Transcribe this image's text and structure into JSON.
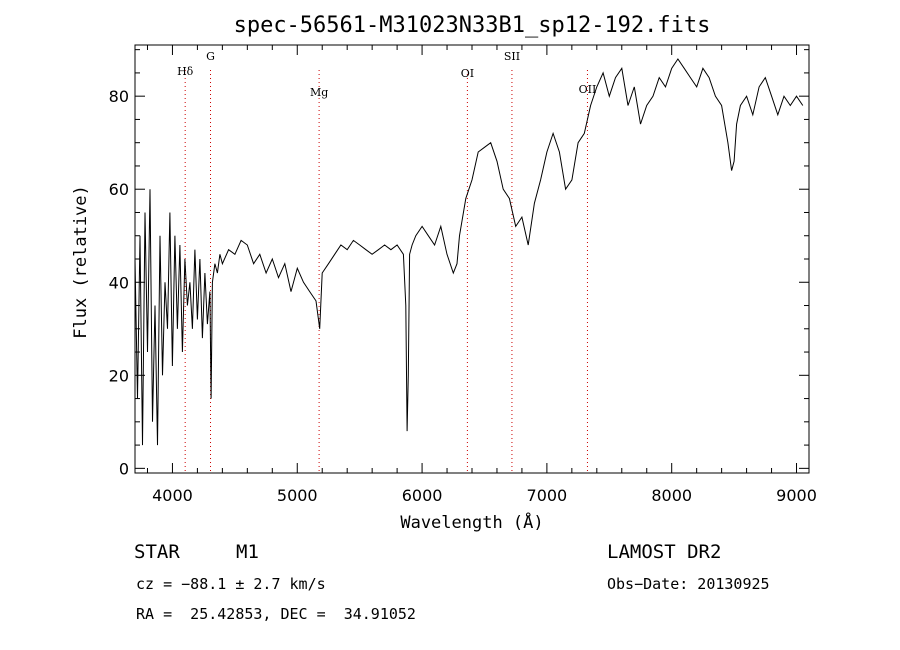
{
  "chart_data": {
    "type": "line",
    "title": "spec-56561-M31023N33B1_sp12-192.fits",
    "xlabel": "Wavelength (Å)",
    "ylabel": "Flux (relative)",
    "xlim": [
      3700,
      9100
    ],
    "ylim": [
      -1,
      91
    ],
    "x_ticks": [
      4000,
      5000,
      6000,
      7000,
      8000,
      9000
    ],
    "y_ticks": [
      0,
      20,
      40,
      60,
      80
    ],
    "line_color": "#000000",
    "marker_color": "#cc0000",
    "lines": [
      {
        "label": "Hδ",
        "x": 4102
      },
      {
        "label": "G",
        "x": 4305
      },
      {
        "label": "Mg",
        "x": 5175
      },
      {
        "label": "OI",
        "x": 6363
      },
      {
        "label": "SII",
        "x": 6720
      },
      {
        "label": "OII",
        "x": 7325
      }
    ],
    "series": [
      {
        "x": [
          3700,
          3720,
          3740,
          3760,
          3780,
          3800,
          3820,
          3840,
          3860,
          3880,
          3900,
          3920,
          3940,
          3960,
          3980,
          4000,
          4020,
          4040,
          4060,
          4080,
          4100,
          4120,
          4140,
          4160,
          4180,
          4200,
          4220,
          4240,
          4260,
          4280,
          4300,
          4310,
          4320,
          4340,
          4360,
          4380,
          4400,
          4450,
          4500,
          4550,
          4600,
          4650,
          4700,
          4750,
          4800,
          4850,
          4900,
          4950,
          5000,
          5050,
          5100,
          5150,
          5180,
          5200,
          5250,
          5300,
          5350,
          5400,
          5450,
          5500,
          5550,
          5600,
          5650,
          5700,
          5750,
          5800,
          5850,
          5870,
          5880,
          5890,
          5900,
          5920,
          5950,
          6000,
          6050,
          6100,
          6150,
          6200,
          6250,
          6280,
          6300,
          6350,
          6400,
          6450,
          6500,
          6550,
          6600,
          6650,
          6700,
          6750,
          6800,
          6850,
          6900,
          6950,
          7000,
          7050,
          7100,
          7150,
          7200,
          7250,
          7300,
          7350,
          7400,
          7450,
          7500,
          7550,
          7600,
          7650,
          7700,
          7750,
          7800,
          7850,
          7900,
          7950,
          8000,
          8050,
          8100,
          8150,
          8200,
          8250,
          8300,
          8350,
          8400,
          8450,
          8480,
          8500,
          8520,
          8550,
          8600,
          8650,
          8700,
          8750,
          8800,
          8850,
          8900,
          8950,
          9000,
          9050
        ],
        "values": [
          45,
          15,
          50,
          5,
          55,
          25,
          60,
          10,
          35,
          5,
          50,
          20,
          40,
          30,
          55,
          22,
          50,
          30,
          48,
          25,
          45,
          35,
          40,
          30,
          47,
          32,
          45,
          28,
          42,
          31,
          38,
          15,
          40,
          44,
          42,
          46,
          44,
          47,
          46,
          49,
          48,
          44,
          46,
          42,
          45,
          41,
          44,
          38,
          43,
          40,
          38,
          36,
          30,
          42,
          44,
          46,
          48,
          47,
          49,
          48,
          47,
          46,
          47,
          48,
          47,
          48,
          46,
          35,
          8,
          20,
          46,
          48,
          50,
          52,
          50,
          48,
          52,
          46,
          42,
          44,
          50,
          58,
          62,
          68,
          69,
          70,
          66,
          60,
          58,
          52,
          54,
          48,
          57,
          62,
          68,
          72,
          68,
          60,
          62,
          70,
          72,
          78,
          82,
          85,
          80,
          84,
          86,
          78,
          82,
          74,
          78,
          80,
          84,
          82,
          86,
          88,
          86,
          84,
          82,
          86,
          84,
          80,
          78,
          70,
          64,
          66,
          74,
          78,
          80,
          76,
          82,
          84,
          80,
          76,
          80,
          78,
          80,
          78
        ]
      }
    ],
    "object_class": "STAR",
    "subclass": "M1",
    "survey": "LAMOST DR2",
    "cz_line": "cz = −88.1 ± 2.7 km/s",
    "obs_date": "Obs−Date: 20130925",
    "radec": "RA =  25.42853, DEC =  34.91052"
  }
}
